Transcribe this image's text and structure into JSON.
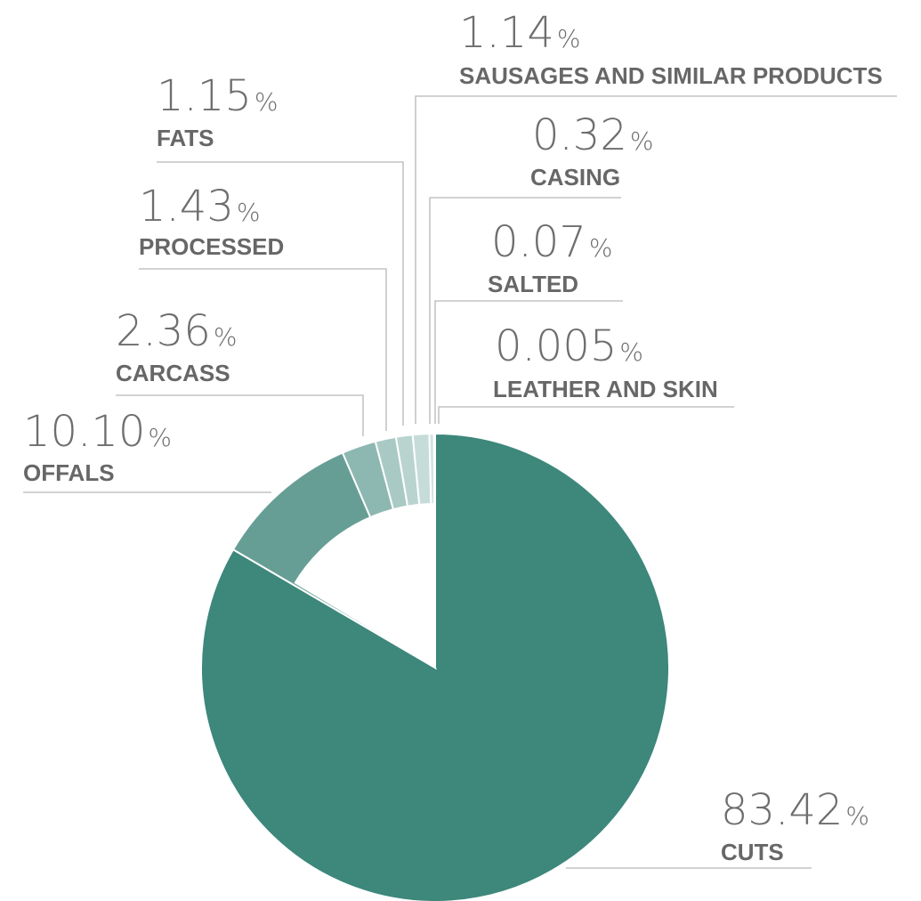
{
  "chart_data": {
    "type": "pie",
    "slices": [
      {
        "label": "CUTS",
        "value": 83.42,
        "display": "83.42",
        "unit": "%",
        "color": "#3d877b"
      },
      {
        "label": "OFFALS",
        "value": 10.1,
        "display": "10.10",
        "unit": "%",
        "color": "#669e95"
      },
      {
        "label": "CARCASS",
        "value": 2.36,
        "display": "2.36",
        "unit": "%",
        "color": "#8db8b1"
      },
      {
        "label": "PROCESSED",
        "value": 1.43,
        "display": "1.43",
        "unit": "%",
        "color": "#a9cac4"
      },
      {
        "label": "FATS",
        "value": 1.15,
        "display": "1.15",
        "unit": "%",
        "color": "#b9d4cf"
      },
      {
        "label": "SAUSAGES AND SIMILAR PRODUCTS",
        "value": 1.14,
        "display": "1.14",
        "unit": "%",
        "color": "#c6dcd8"
      },
      {
        "label": "CASING",
        "value": 0.32,
        "display": "0.32",
        "unit": "%",
        "color": "#d2e3e0"
      },
      {
        "label": "SALTED",
        "value": 0.07,
        "display": "0.07",
        "unit": "%",
        "color": "#dae8e5"
      },
      {
        "label": "LEATHER AND SKIN",
        "value": 0.005,
        "display": "0.005",
        "unit": "%",
        "color": "#e2ece9"
      }
    ],
    "inner_gap_note": "",
    "legend": "labels placed outside with leader lines"
  }
}
